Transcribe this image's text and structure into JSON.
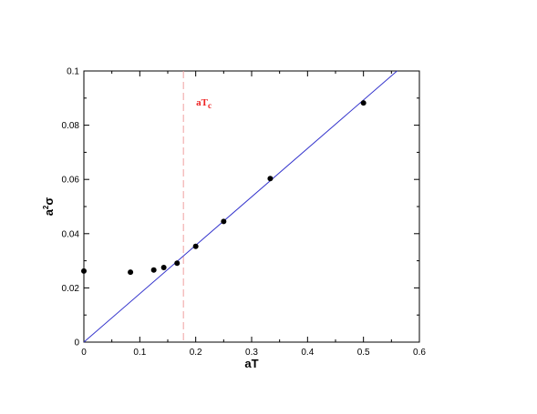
{
  "chart_data": {
    "type": "scatter",
    "title": "",
    "xlabel": "aT",
    "ylabel": {
      "base": "a",
      "superscript": "2",
      "symbol": "σ"
    },
    "xlim": [
      0,
      0.6
    ],
    "ylim": [
      0,
      0.1
    ],
    "x_ticks": [
      "0",
      "0.1",
      "0.2",
      "0.3",
      "0.4",
      "0.5",
      "0.6"
    ],
    "y_ticks": [
      "0",
      "0.02",
      "0.04",
      "0.06",
      "0.08",
      "0.1"
    ],
    "grid": false,
    "series": [
      {
        "marker": "circle",
        "color": "#000000",
        "points": [
          {
            "x": 0.0,
            "y": 0.0262
          },
          {
            "x": 0.0833,
            "y": 0.0258
          },
          {
            "x": 0.125,
            "y": 0.0266
          },
          {
            "x": 0.1429,
            "y": 0.0275
          },
          {
            "x": 0.1667,
            "y": 0.0291
          },
          {
            "x": 0.2,
            "y": 0.0353
          },
          {
            "x": 0.25,
            "y": 0.0445
          },
          {
            "x": 0.3333,
            "y": 0.0603
          },
          {
            "x": 0.5,
            "y": 0.0882
          }
        ]
      }
    ],
    "fit_line": {
      "from": [
        0,
        0
      ],
      "to": [
        0.56,
        0.1
      ],
      "color": "#3333cc"
    },
    "critical_line": {
      "x": 0.178,
      "color": "#f0a0a0",
      "label": {
        "base": "aT",
        "subscript": "c"
      },
      "label_color": "#ee2222"
    }
  }
}
